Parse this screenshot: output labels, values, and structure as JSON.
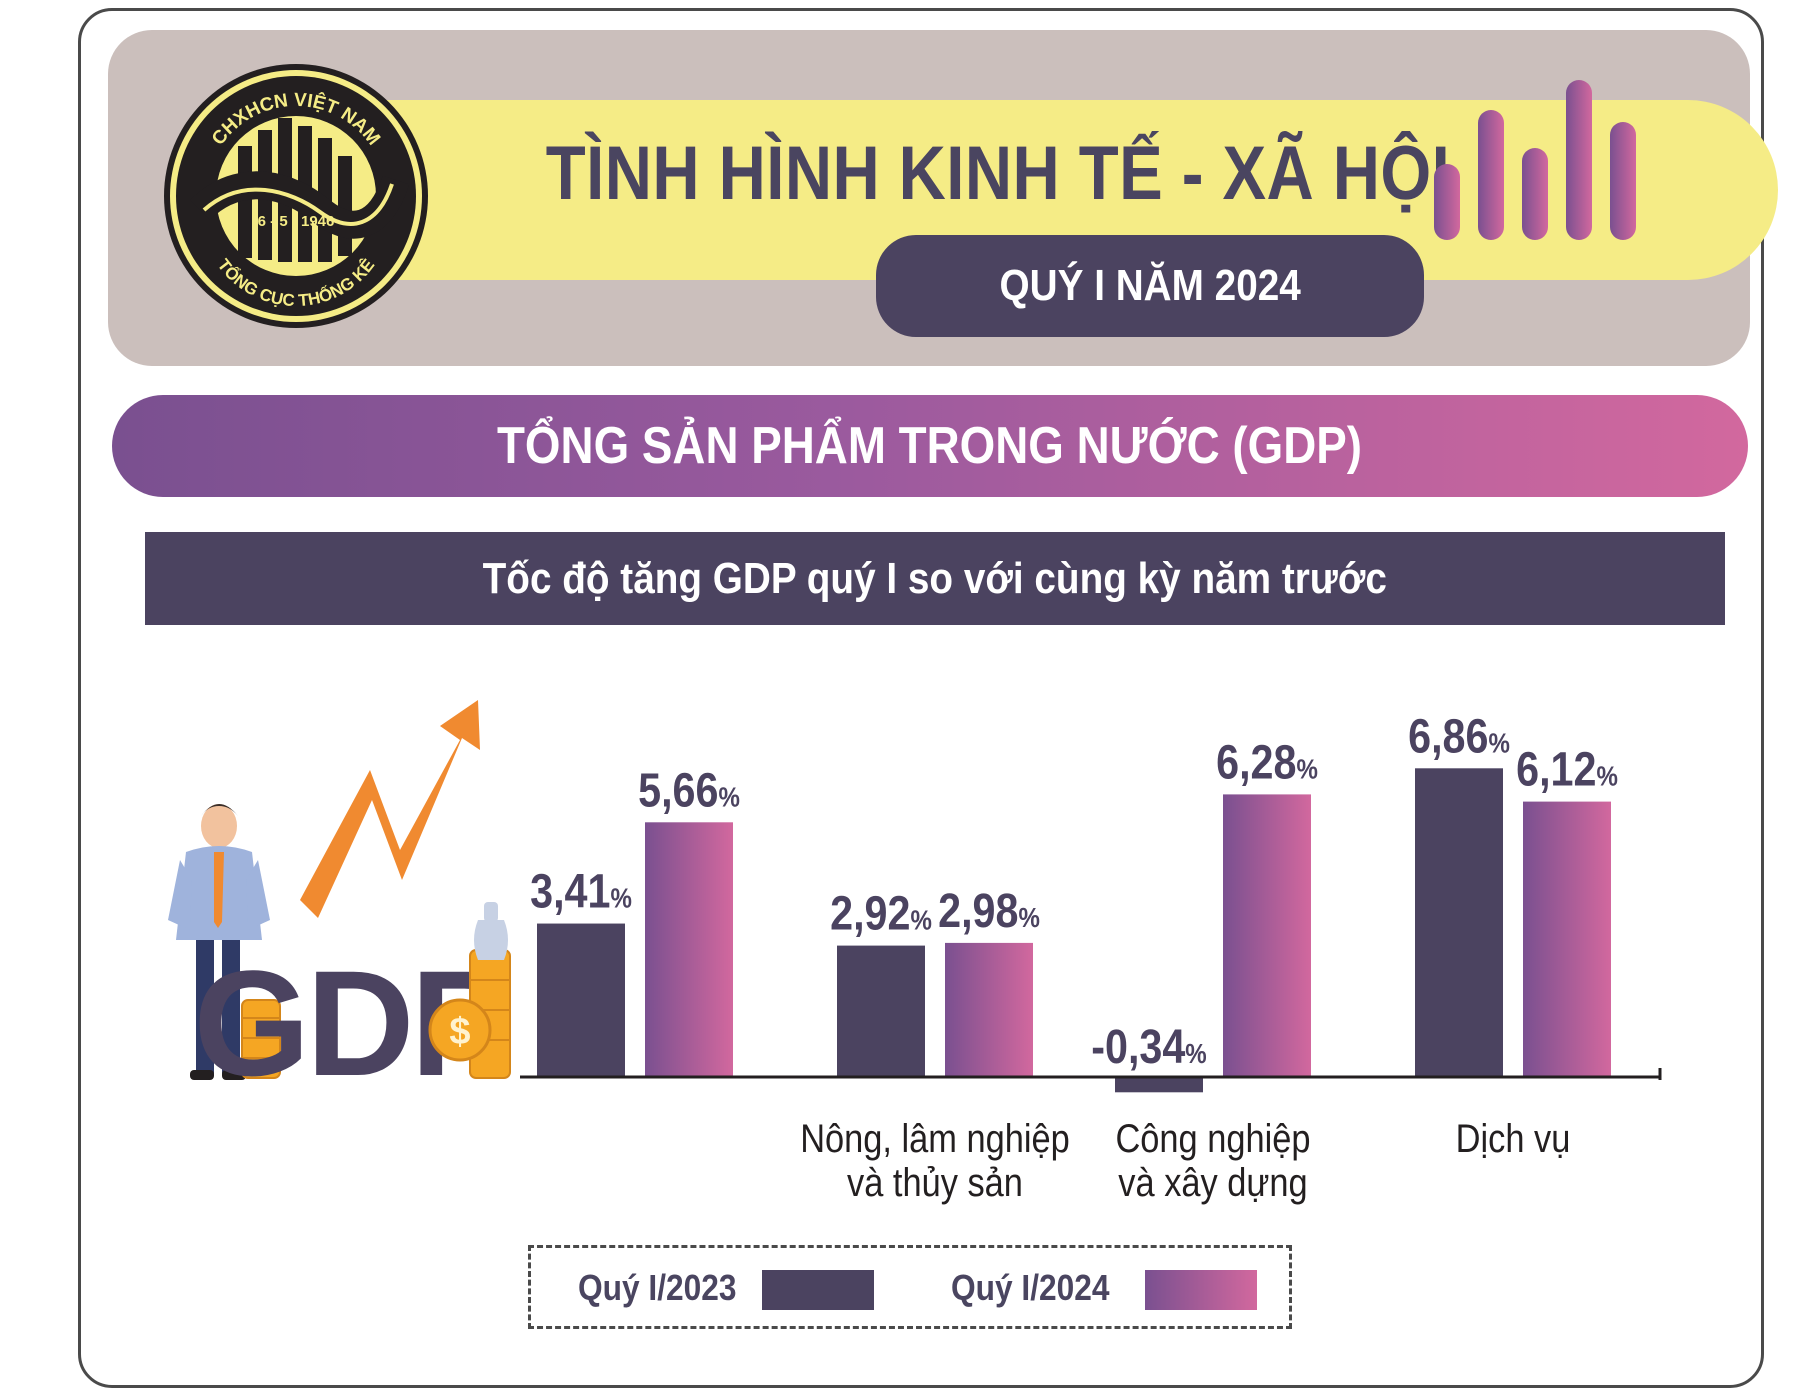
{
  "header": {
    "title": "TÌNH HÌNH KINH TẾ - XÃ HỘI",
    "period": "QUÝ I NĂM 2024",
    "logo": {
      "top_text": "CHXHCN VIỆT NAM",
      "date_text": "6 - 5 - 1946",
      "bottom_text": "TỔNG CỤC THỐNG KÊ"
    }
  },
  "section": {
    "title": "TỔNG SẢN PHẨM TRONG NƯỚC (GDP)",
    "subtitle": "Tốc độ tăng GDP quý I so với cùng kỳ năm trước"
  },
  "illustration": {
    "gdp_text": "GDP",
    "coin_symbol": "$"
  },
  "colors": {
    "dark": "#4b4360",
    "purple": "#7a5090",
    "pink": "#d2689e",
    "yellow": "#f5ec86",
    "header_bg": "#cbbfbc",
    "orange": "#f08a30"
  },
  "chart_data": {
    "type": "bar",
    "title": "Tốc độ tăng GDP quý I so với cùng kỳ năm trước",
    "unit": "%",
    "categories": [
      "",
      "Nông, lâm nghiệp và thủy sản",
      "Công nghiệp và xây dựng",
      "Dịch vụ"
    ],
    "category_lines": [
      [],
      [
        "Nông, lâm nghiệp",
        "và thủy sản"
      ],
      [
        "Công nghiệp",
        "và xây dựng"
      ],
      [
        "Dịch vụ"
      ]
    ],
    "series": [
      {
        "name": "Quý I/2023",
        "values": [
          3.41,
          2.92,
          -0.34,
          6.86
        ],
        "labels": [
          "3,41",
          "2,92",
          "-0,34",
          "6,86"
        ]
      },
      {
        "name": "Quý I/2024",
        "values": [
          5.66,
          2.98,
          6.28,
          6.12
        ],
        "labels": [
          "5,66",
          "2,98",
          "6,28",
          "6,12"
        ]
      }
    ],
    "legend_position": "bottom",
    "grid": false
  }
}
